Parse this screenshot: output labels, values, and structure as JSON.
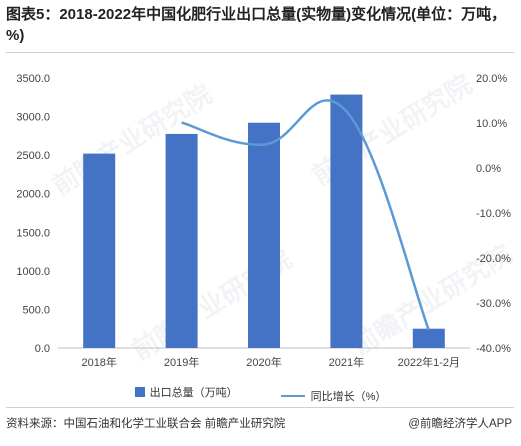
{
  "page": {
    "title": "图表5：2018-2022年中国化肥行业出口总量(实物量)变化情况(单位：万吨，%)",
    "source_label": "资料来源：",
    "source_text": "中国石油和化学工业联合会 前瞻产业研究院",
    "brand": "@前瞻经济学人APP",
    "watermark": "前瞻产业研究院"
  },
  "chart_data": {
    "type": "bar",
    "categories": [
      "2018年",
      "2019年",
      "2020年",
      "2021年",
      "2022年1-2月"
    ],
    "series": [
      {
        "name": "出口总量（万吨）",
        "type": "bar",
        "axis": "left",
        "color": "#4472c4",
        "values": [
          2520,
          2775,
          2920,
          3285,
          250
        ]
      },
      {
        "name": "同比增长（%）",
        "type": "line",
        "axis": "right",
        "color": "#5b9bd5",
        "values": [
          null,
          10.1,
          5.2,
          12.6,
          -36.0
        ]
      }
    ],
    "y_left": {
      "min": 0,
      "max": 3500,
      "step": 500,
      "ticks": [
        "0.0",
        "500.0",
        "1000.0",
        "1500.0",
        "2000.0",
        "2500.0",
        "3000.0",
        "3500.0"
      ]
    },
    "y_right": {
      "min": -40,
      "max": 20,
      "step": 10,
      "ticks": [
        "-40.0%",
        "-30.0%",
        "-20.0%",
        "-10.0%",
        "0.0%",
        "10.0%",
        "20.0%"
      ]
    },
    "grid": false,
    "legend": "bottom"
  }
}
